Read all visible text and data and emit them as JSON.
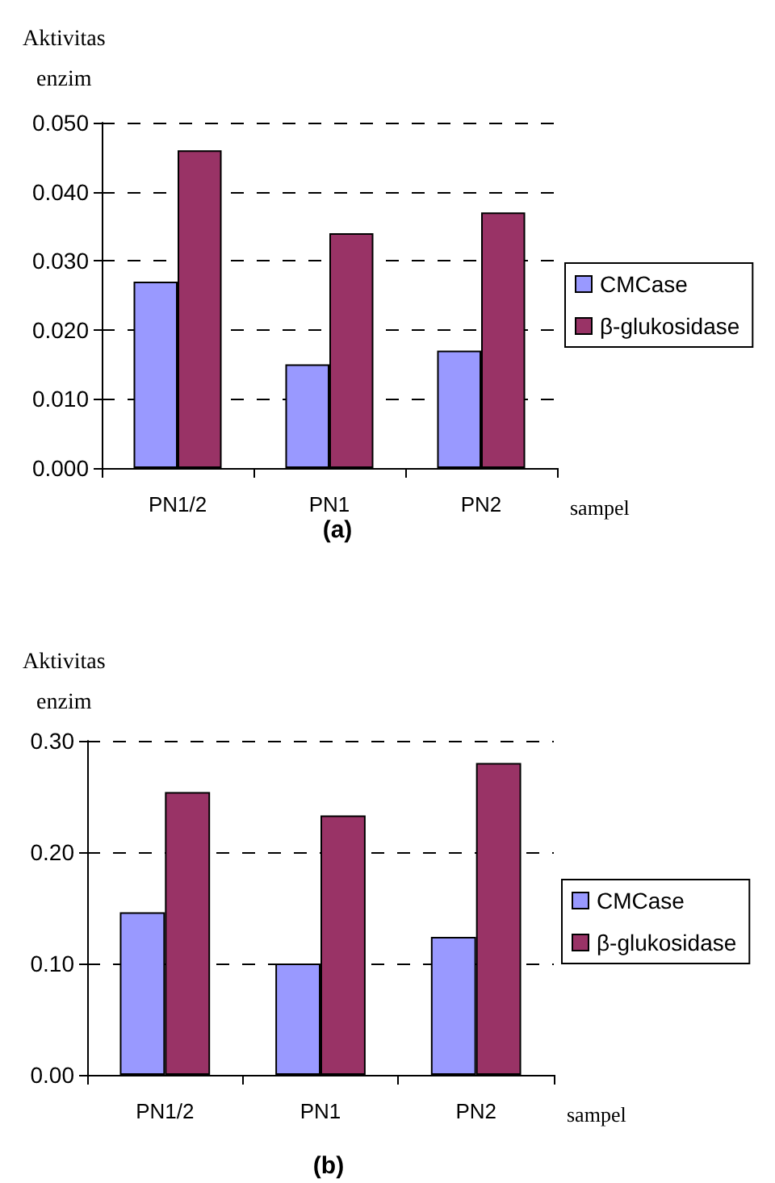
{
  "chart_data": [
    {
      "type": "bar",
      "title": "(a)",
      "ylabel": "Aktivitas enzim",
      "xlabel": "sampel",
      "categories": [
        "PN1/2",
        "PN1",
        "PN2"
      ],
      "series": [
        {
          "name": "CMCase",
          "color": "#9999ff",
          "values": [
            0.027,
            0.015,
            0.017
          ]
        },
        {
          "name": "β-glukosidase",
          "color": "#993366",
          "values": [
            0.046,
            0.034,
            0.037
          ]
        }
      ],
      "ylim": [
        0,
        0.05
      ],
      "yticks": [
        {
          "value": 0,
          "label": "0.000"
        },
        {
          "value": 0.01,
          "label": "0.010"
        },
        {
          "value": 0.02,
          "label": "0.020"
        },
        {
          "value": 0.03,
          "label": "0.030"
        },
        {
          "value": 0.04,
          "label": "0.040"
        },
        {
          "value": 0.05,
          "label": "0.050"
        }
      ],
      "grid": "y",
      "legend": "right"
    },
    {
      "type": "bar",
      "title": "(b)",
      "ylabel": "Aktivitas enzim",
      "xlabel": "sampel",
      "categories": [
        "PN1/2",
        "PN1",
        "PN2"
      ],
      "series": [
        {
          "name": "CMCase",
          "color": "#9999ff",
          "values": [
            0.146,
            0.1,
            0.124
          ]
        },
        {
          "name": "β-glukosidase",
          "color": "#993366",
          "values": [
            0.254,
            0.233,
            0.28
          ]
        }
      ],
      "ylim": [
        0,
        0.3
      ],
      "yticks": [
        {
          "value": 0,
          "label": "0.00"
        },
        {
          "value": 0.1,
          "label": "0.10"
        },
        {
          "value": 0.2,
          "label": "0.20"
        },
        {
          "value": 0.3,
          "label": "0.30"
        }
      ],
      "grid": "y",
      "legend": "right"
    }
  ]
}
